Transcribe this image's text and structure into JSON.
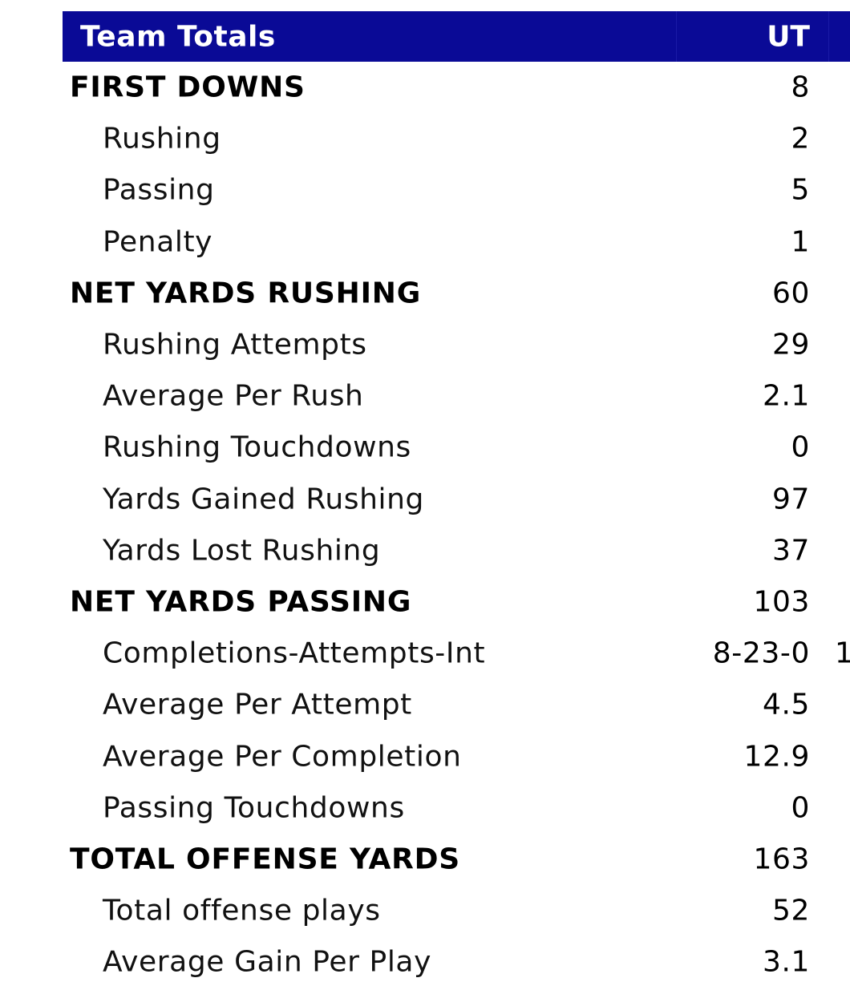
{
  "header": {
    "title": "Team Totals",
    "team": "UT"
  },
  "rows": [
    {
      "label": "FIRST DOWNS",
      "value": "8",
      "type": "section"
    },
    {
      "label": "Rushing",
      "value": "2",
      "type": "sub"
    },
    {
      "label": "Passing",
      "value": "5",
      "type": "sub"
    },
    {
      "label": "Penalty",
      "value": "1",
      "type": "sub"
    },
    {
      "label": "NET YARDS RUSHING",
      "value": "60",
      "type": "section"
    },
    {
      "label": "Rushing Attempts",
      "value": "29",
      "type": "sub"
    },
    {
      "label": "Average Per Rush",
      "value": "2.1",
      "type": "sub"
    },
    {
      "label": "Rushing Touchdowns",
      "value": "0",
      "type": "sub"
    },
    {
      "label": "Yards Gained Rushing",
      "value": "97",
      "type": "sub"
    },
    {
      "label": "Yards Lost Rushing",
      "value": "37",
      "type": "sub"
    },
    {
      "label": "NET YARDS PASSING",
      "value": "103",
      "type": "section"
    },
    {
      "label": "Completions-Attempts-Int",
      "value": "8-23-0",
      "value2": "1",
      "type": "sub"
    },
    {
      "label": "Average Per Attempt",
      "value": "4.5",
      "type": "sub"
    },
    {
      "label": "Average Per Completion",
      "value": "12.9",
      "type": "sub"
    },
    {
      "label": "Passing Touchdowns",
      "value": "0",
      "type": "sub"
    },
    {
      "label": "TOTAL OFFENSE YARDS",
      "value": "163",
      "type": "section"
    },
    {
      "label": "Total offense plays",
      "value": "52",
      "type": "sub"
    },
    {
      "label": "Average Gain Per Play",
      "value": "3.1",
      "type": "sub"
    }
  ],
  "colors": {
    "header_bg": "#0a0a96",
    "header_text": "#ffffff",
    "text": "#000000"
  }
}
